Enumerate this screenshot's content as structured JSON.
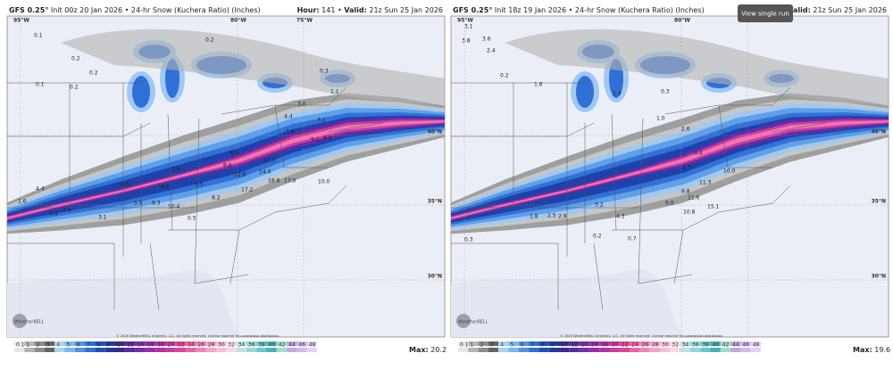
{
  "panels": [
    {
      "model": "GFS 0.25°",
      "init": "Init 00z 20 Jan 2026",
      "separator": "•",
      "product": "24-hr Snow (Kuchera Ratio) (Inches)",
      "hour_label": "Hour:",
      "hour": "141",
      "valid_label": "Valid:",
      "valid": "21z Sun 25 Jan 2026",
      "max_label": "Max:",
      "max": 20.2,
      "lon_labels": [
        "95°W",
        "80°W",
        "75°W"
      ],
      "lat_labels": [
        "40°N",
        "35°N",
        "30°N"
      ],
      "snow_labels": [
        "0.1",
        "0.2",
        "0.2",
        "0.2",
        "0.1",
        "0.2",
        "0.3",
        "1.1",
        "3.0",
        "4.4",
        "7.0",
        "7.1",
        "9.1",
        "8.1",
        "6.8",
        "11.0",
        "3.9",
        "8.6",
        "12.8",
        "14.4",
        "18.8",
        "17.0",
        "10.0",
        "9.5",
        "17.2",
        "4.5",
        "6.6",
        "5.5",
        "9.3",
        "10.4",
        "8.2",
        "4.4",
        "0.4",
        "2.6",
        "3.1",
        "1.6",
        "0.5"
      ]
    },
    {
      "model": "GFS 0.25°",
      "init": "Init 18z 19 Jan 2026",
      "separator": "•",
      "product": "24-hr Snow (Kuchera Ratio) (Inches)",
      "valid_label": "Valid:",
      "valid": "21z Sun 25 Jan 2026",
      "max_label": "Max:",
      "max": 19.6,
      "lon_labels": [
        "95°W",
        "80°W",
        "75°W"
      ],
      "lat_labels": [
        "40°N",
        "35°N",
        "30°N"
      ],
      "snow_labels": [
        "3.1",
        "3.8",
        "3.6",
        "2.4",
        "0.2",
        "1.6",
        "1.4",
        "0.3",
        "1.0",
        "2.6",
        "5.7",
        "4.4",
        "10.0",
        "9.8",
        "11.3",
        "11.6",
        "9.0",
        "15.1",
        "10.8",
        "0.2",
        "0.3",
        "2.5",
        "2.9",
        "4.3",
        "3.2",
        "1.8",
        "0.7"
      ]
    }
  ],
  "legend_ticks": [
    0.1,
    1,
    2,
    3,
    4,
    5,
    6,
    7,
    8,
    9,
    10,
    12,
    14,
    16,
    18,
    20,
    22,
    24,
    26,
    28,
    30,
    32,
    34,
    36,
    38,
    40,
    42,
    44,
    46,
    48
  ],
  "copyright": "© 2026 WeatherBELL Analytics, LLC. All rights reserved. License required for commercial distribution.",
  "logo": "WeatherBELL",
  "button": "View single run"
}
